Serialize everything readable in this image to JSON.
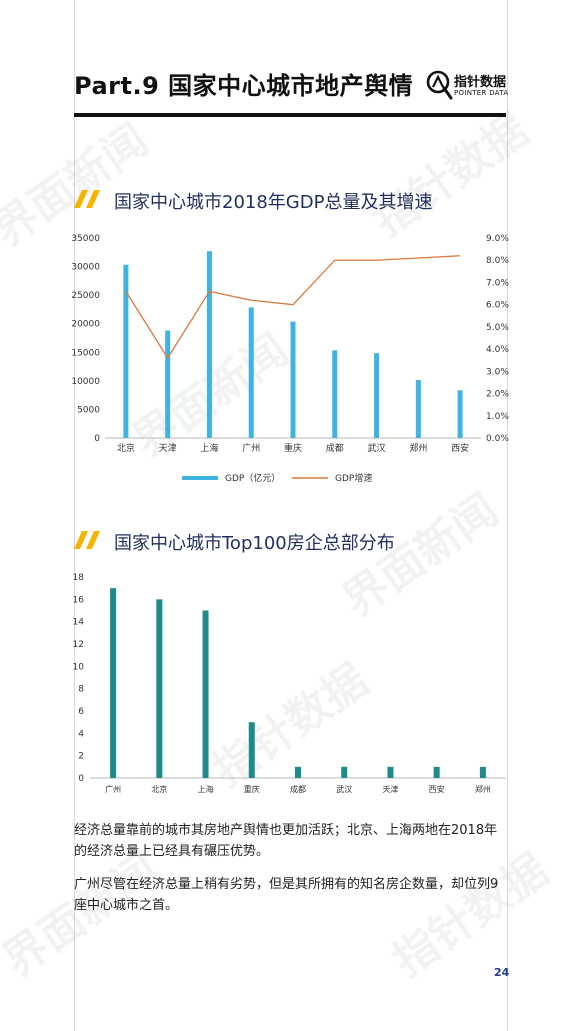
{
  "header": {
    "title": "Part.9  国家中心城市地产舆情",
    "logo_cn": "指针数据",
    "logo_en": "POINTER DATA"
  },
  "section1": {
    "title": "国家中心城市2018年GDP总量及其增速"
  },
  "section2": {
    "title": "国家中心城市Top100房企总部分布"
  },
  "paragraphs": [
    "经济总量靠前的城市其房地产舆情也更加活跃；北京、上海两地在2018年的经济总量上已经具有碾压优势。",
    "广州尽管在经济总量上稍有劣势，但是其所拥有的知名房企数量，却位列9座中心城市之首。"
  ],
  "page_number": "24",
  "watermark": {
    "text1": "界面新闻",
    "text2": "指针数据"
  },
  "chart_data": [
    {
      "type": "bar",
      "categories": [
        "北京",
        "天津",
        "上海",
        "广州",
        "重庆",
        "成都",
        "武汉",
        "郑州",
        "西安"
      ],
      "series": [
        {
          "name": "GDP（亿元）",
          "type": "bar",
          "values": [
            30320,
            18810,
            32680,
            22859,
            20363,
            15343,
            14847,
            10143,
            8350
          ],
          "color": "#3fb4e3"
        },
        {
          "name": "GDP增速",
          "type": "line",
          "axis": "right",
          "values": [
            6.6,
            3.6,
            6.6,
            6.2,
            6.0,
            8.0,
            8.0,
            8.1,
            8.2
          ],
          "color": "#d9793a"
        }
      ],
      "y_left": {
        "min": 0,
        "max": 35000,
        "ticks": [
          "0",
          "5000",
          "10000",
          "15000",
          "20000",
          "25000",
          "30000",
          "35000"
        ]
      },
      "y_right": {
        "min": 0,
        "max": 9,
        "ticks": [
          "0.0%",
          "1.0%",
          "2.0%",
          "3.0%",
          "4.0%",
          "5.0%",
          "6.0%",
          "7.0%",
          "8.0%",
          "9.0%"
        ]
      },
      "legend_position": "bottom"
    },
    {
      "type": "bar",
      "categories": [
        "广州",
        "北京",
        "上海",
        "重庆",
        "成都",
        "武汉",
        "天津",
        "西安",
        "郑州"
      ],
      "values": [
        17,
        16,
        15,
        5,
        1,
        1,
        1,
        1,
        1
      ],
      "color": "#1f8a8a",
      "y_axis": {
        "min": 0,
        "max": 18,
        "ticks": [
          "0",
          "2",
          "4",
          "6",
          "8",
          "10",
          "12",
          "14",
          "16",
          "18"
        ]
      }
    }
  ]
}
